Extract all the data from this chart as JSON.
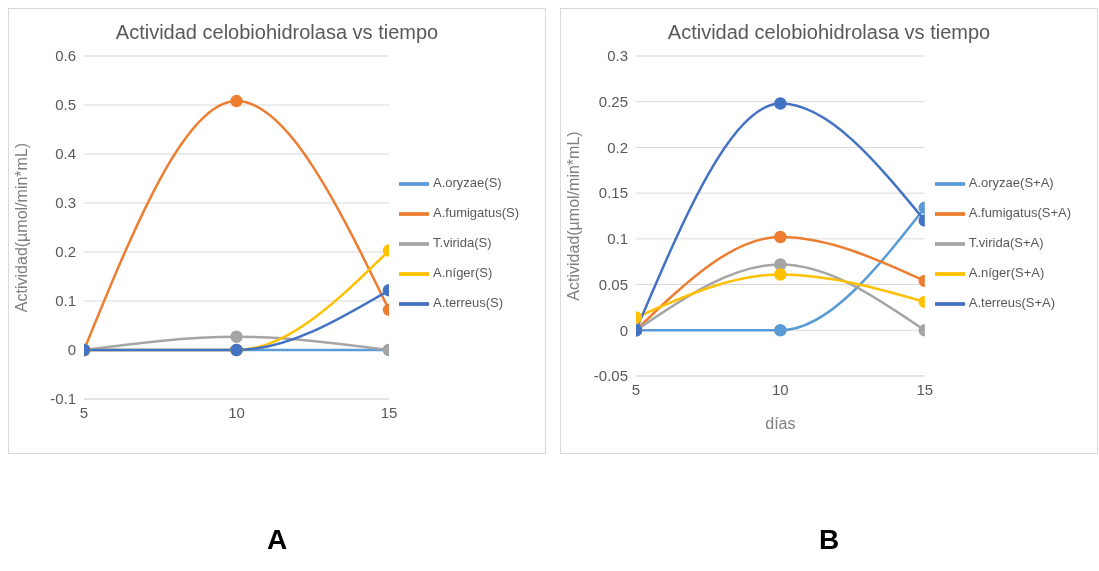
{
  "chart_data": [
    {
      "type": "line",
      "title": "Actividad celobiohidrolasa vs tiempo",
      "ylabel": "Actividad(µmol/min*mL)",
      "x": [
        5,
        10,
        15
      ],
      "xlim": [
        5,
        15
      ],
      "xticks": [
        5,
        10,
        15
      ],
      "ylim": [
        -0.1,
        0.6
      ],
      "yticks": [
        -0.1,
        0,
        0.1,
        0.2,
        0.3,
        0.4,
        0.5,
        0.6
      ],
      "grid": "y",
      "legend": "right",
      "marker": "circle",
      "line_style": "solid",
      "annotations": [
        "A"
      ],
      "series": [
        {
          "name": "A.oryzae(S)",
          "color": "#5b9bd5",
          "values": [
            0,
            0,
            0
          ]
        },
        {
          "name": "A.fumigatus(S)",
          "color": "#ed7d31",
          "values": [
            0,
            0.508,
            0.082
          ]
        },
        {
          "name": "T.virida(S)",
          "color": "#a5a5a5",
          "values": [
            0,
            0.027,
            0
          ]
        },
        {
          "name": "A.níger(S)",
          "color": "#ffc000",
          "values": [
            0,
            0,
            0.203
          ]
        },
        {
          "name": "A.terreus(S)",
          "color": "#4472c4",
          "values": [
            0,
            0,
            0.122
          ]
        }
      ]
    },
    {
      "type": "line",
      "title": "Actividad celobiohidrolasa vs tiempo",
      "xlabel": "días",
      "ylabel": "Actividad(µmol/min*mL)",
      "x": [
        5,
        10,
        15
      ],
      "xlim": [
        5,
        15
      ],
      "xticks": [
        5,
        10,
        15
      ],
      "ylim": [
        -0.05,
        0.3
      ],
      "yticks": [
        -0.05,
        0,
        0.05,
        0.1,
        0.15,
        0.2,
        0.25,
        0.3
      ],
      "grid": "y",
      "legend": "right",
      "marker": "circle",
      "line_style": "solid",
      "annotations": [
        "B"
      ],
      "series": [
        {
          "name": "A.oryzae(S+A)",
          "color": "#5b9bd5",
          "values": [
            0,
            0,
            0.134
          ]
        },
        {
          "name": "A.fumigatus(S+A)",
          "color": "#ed7d31",
          "values": [
            0,
            0.102,
            0.054
          ]
        },
        {
          "name": "T.virida(S+A)",
          "color": "#a5a5a5",
          "values": [
            0,
            0.072,
            0
          ]
        },
        {
          "name": "A.níger(S+A)",
          "color": "#ffc000",
          "values": [
            0.014,
            0.061,
            0.031
          ]
        },
        {
          "name": "A.terreus(S+A)",
          "color": "#4472c4",
          "values": [
            0,
            0.248,
            0.12
          ]
        }
      ]
    }
  ]
}
